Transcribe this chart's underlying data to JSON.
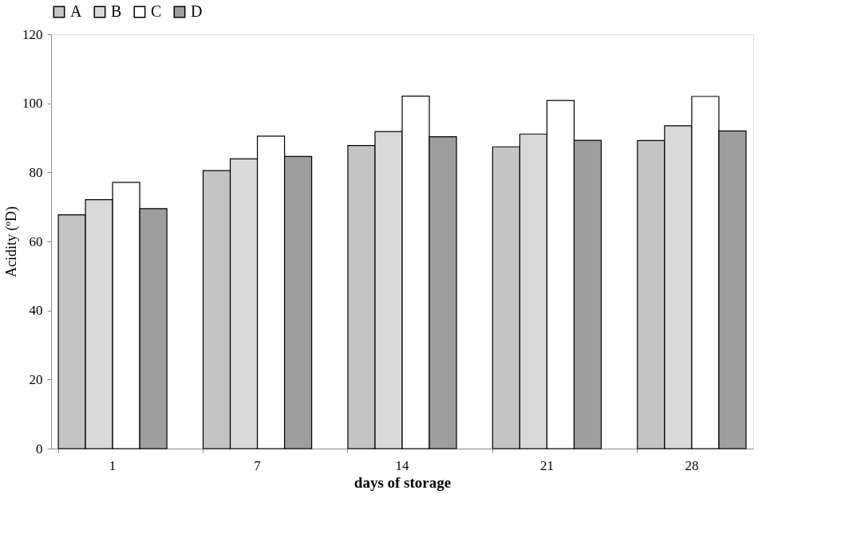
{
  "chart_data": {
    "type": "bar",
    "xlabel": "days of storage",
    "ylabel": "Acidity (ºD)",
    "categories": [
      "1",
      "7",
      "14",
      "21",
      "28"
    ],
    "series": [
      {
        "name": "A",
        "color": "#c4c4c4",
        "values": [
          67.7,
          80.5,
          87.8,
          87.4,
          89.2
        ]
      },
      {
        "name": "B",
        "color": "#d9d9d9",
        "values": [
          72.1,
          83.9,
          91.8,
          91.1,
          93.5
        ]
      },
      {
        "name": "C",
        "color": "#ffffff",
        "values": [
          77.1,
          90.5,
          102.1,
          100.8,
          102.0
        ]
      },
      {
        "name": "D",
        "color": "#9e9e9e",
        "values": [
          69.5,
          84.6,
          90.3,
          89.3,
          92.0
        ]
      }
    ],
    "ylim": [
      0,
      120
    ],
    "yticks": [
      0,
      20,
      40,
      60,
      80,
      100,
      120
    ],
    "grid": false,
    "legend": "top"
  }
}
